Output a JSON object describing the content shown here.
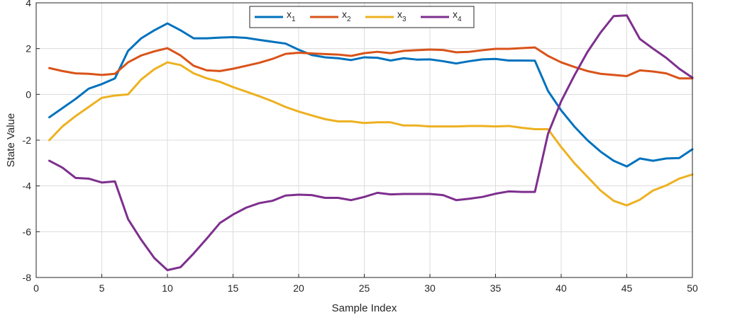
{
  "chart_data": {
    "type": "line",
    "title": "",
    "xlabel": "Sample Index",
    "ylabel": "State Value",
    "xlim": [
      0,
      50
    ],
    "ylim": [
      -8,
      4
    ],
    "xticks": [
      0,
      5,
      10,
      15,
      20,
      25,
      30,
      35,
      40,
      45,
      50
    ],
    "yticks": [
      -8,
      -6,
      -4,
      -2,
      0,
      2,
      4
    ],
    "grid": true,
    "legend_position": "top-center",
    "x": [
      1,
      2,
      3,
      4,
      5,
      6,
      7,
      8,
      9,
      10,
      11,
      12,
      13,
      14,
      15,
      16,
      17,
      18,
      19,
      20,
      21,
      22,
      23,
      24,
      25,
      26,
      27,
      28,
      29,
      30,
      31,
      32,
      33,
      34,
      35,
      36,
      37,
      38,
      39,
      40,
      41,
      42,
      43,
      44,
      45,
      46,
      47,
      48,
      49,
      50
    ],
    "series": [
      {
        "name": "x",
        "subscript": "1",
        "color": "#0072BD",
        "values": [
          -1.0,
          -0.6,
          -0.2,
          0.25,
          0.45,
          0.7,
          1.9,
          2.45,
          2.8,
          3.1,
          2.8,
          2.45,
          2.45,
          2.48,
          2.5,
          2.47,
          2.38,
          2.3,
          2.22,
          1.95,
          1.72,
          1.62,
          1.58,
          1.5,
          1.62,
          1.6,
          1.48,
          1.58,
          1.52,
          1.53,
          1.45,
          1.35,
          1.45,
          1.53,
          1.55,
          1.48,
          1.48,
          1.47,
          0.15,
          -0.7,
          -1.4,
          -2.0,
          -2.5,
          -2.9,
          -3.15,
          -2.8,
          -2.9,
          -2.8,
          -2.78,
          -2.4
        ]
      },
      {
        "name": "x",
        "subscript": "2",
        "color": "#D95319",
        "values": [
          1.15,
          1.02,
          0.92,
          0.9,
          0.85,
          0.9,
          1.4,
          1.7,
          1.88,
          2.02,
          1.7,
          1.25,
          1.05,
          1.02,
          1.12,
          1.25,
          1.38,
          1.55,
          1.77,
          1.82,
          1.79,
          1.76,
          1.74,
          1.68,
          1.8,
          1.86,
          1.8,
          1.9,
          1.93,
          1.96,
          1.94,
          1.84,
          1.86,
          1.93,
          1.99,
          1.99,
          2.02,
          2.05,
          1.68,
          1.4,
          1.2,
          1.02,
          0.9,
          0.85,
          0.8,
          1.05,
          1.0,
          0.92,
          0.7,
          0.7
        ]
      },
      {
        "name": "x",
        "subscript": "3",
        "color": "#EDB120",
        "values": [
          -2.0,
          -1.4,
          -0.95,
          -0.55,
          -0.15,
          -0.05,
          0.0,
          0.65,
          1.1,
          1.4,
          1.28,
          0.92,
          0.7,
          0.55,
          0.32,
          0.12,
          -0.08,
          -0.3,
          -0.55,
          -0.75,
          -0.92,
          -1.08,
          -1.18,
          -1.18,
          -1.25,
          -1.22,
          -1.22,
          -1.36,
          -1.36,
          -1.4,
          -1.4,
          -1.4,
          -1.38,
          -1.38,
          -1.4,
          -1.38,
          -1.46,
          -1.52,
          -1.52,
          -2.3,
          -3.0,
          -3.6,
          -4.2,
          -4.65,
          -4.85,
          -4.6,
          -4.2,
          -3.98,
          -3.68,
          -3.5
        ]
      },
      {
        "name": "x",
        "subscript": "4",
        "color": "#7E2F8E",
        "values": [
          -2.9,
          -3.2,
          -3.65,
          -3.68,
          -3.85,
          -3.8,
          -5.45,
          -6.35,
          -7.15,
          -7.68,
          -7.55,
          -6.95,
          -6.3,
          -5.62,
          -5.25,
          -4.95,
          -4.75,
          -4.65,
          -4.42,
          -4.38,
          -4.4,
          -4.52,
          -4.52,
          -4.62,
          -4.48,
          -4.3,
          -4.37,
          -4.35,
          -4.35,
          -4.35,
          -4.4,
          -4.62,
          -4.56,
          -4.48,
          -4.34,
          -4.24,
          -4.26,
          -4.26,
          -1.72,
          -0.3,
          0.82,
          1.85,
          2.7,
          3.42,
          3.45,
          2.42,
          2.0,
          1.6,
          1.12,
          0.73
        ]
      }
    ]
  }
}
